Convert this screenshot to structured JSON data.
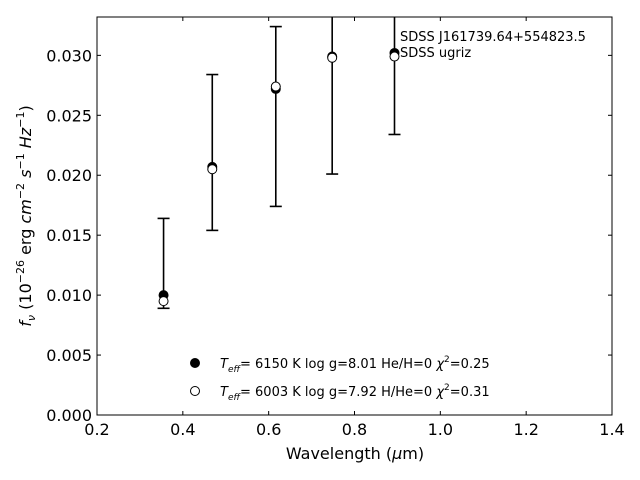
{
  "chart_data": {
    "type": "scatter",
    "title": "",
    "object_name": "SDSS J161739.64+554823.5",
    "photometry_label": "SDSS ugriz",
    "xlabel": "Wavelength (μm)",
    "ylabel": "fν (10⁻²⁶ erg cm⁻² s⁻¹ Hz⁻¹)",
    "xlim": [
      0.2,
      1.4
    ],
    "ylim": [
      0.0,
      0.0332
    ],
    "xticks": [
      0.2,
      0.4,
      0.6,
      0.8,
      1.0,
      1.2,
      1.4
    ],
    "xtick_labels": [
      "0.2",
      "0.4",
      "0.6",
      "0.8",
      "1.0",
      "1.2",
      "1.4"
    ],
    "yticks": [
      0.0,
      0.005,
      0.01,
      0.015,
      0.02,
      0.025,
      0.03
    ],
    "ytick_labels": [
      "0.000",
      "0.005",
      "0.010",
      "0.015",
      "0.020",
      "0.025",
      "0.030"
    ],
    "grid": false,
    "legend_position": "bottom-center",
    "series": [
      {
        "name": "Teff= 6150 K log g=8.01 He/H=0 χ²=0.25",
        "label_parts": {
          "teff": "6150 K",
          "logg": "log g=8.01",
          "comp": "He/H=0",
          "chi": "=0.25"
        },
        "marker": "filled-circle",
        "color": "#000000",
        "x": [
          0.3551,
          0.4686,
          0.6166,
          0.748,
          0.8932
        ],
        "y": [
          0.01,
          0.0207,
          0.0272,
          0.0299,
          0.0302
        ]
      },
      {
        "name": "Teff= 6003 K log g=7.92 H/He=0 χ²=0.31",
        "label_parts": {
          "teff": "6003 K",
          "logg": "log g=7.92",
          "comp": "H/He=0",
          "chi": "=0.31"
        },
        "marker": "open-circle",
        "color": "#000000",
        "x": [
          0.3551,
          0.4686,
          0.6166,
          0.748,
          0.8932
        ],
        "y": [
          0.0095,
          0.0205,
          0.0274,
          0.0298,
          0.0299
        ]
      }
    ],
    "observed": {
      "x": [
        0.3551,
        0.4686,
        0.6166,
        0.748,
        0.8932
      ],
      "y_low": [
        0.0089,
        0.0154,
        0.0174,
        0.0201,
        0.0234
      ],
      "y_high": [
        0.0164,
        0.0284,
        0.0324,
        0.0345,
        0.0345
      ]
    }
  }
}
